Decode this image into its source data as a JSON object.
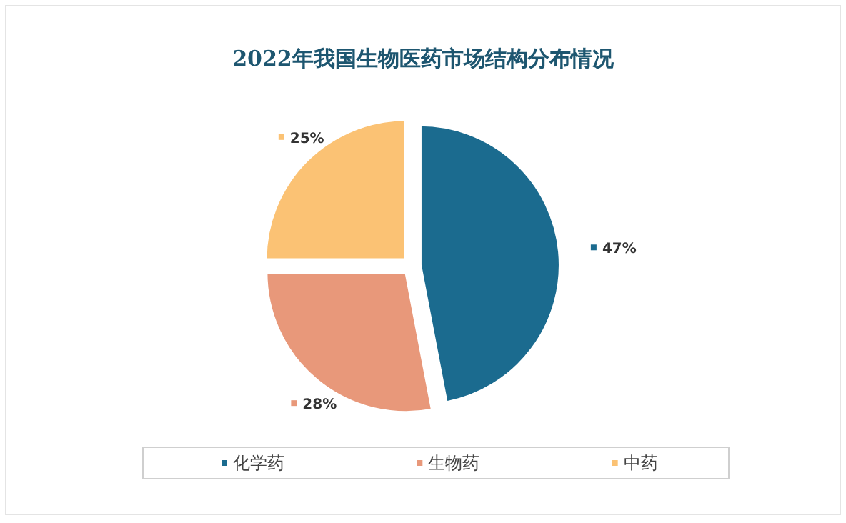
{
  "chart_data": {
    "type": "pie",
    "title": "2022年我国生物医药市场结构分布情况",
    "categories": [
      "化学药",
      "生物药",
      "中药"
    ],
    "values": [
      47,
      28,
      25
    ],
    "colors": [
      "#1b6b8f",
      "#e8987a",
      "#fbc274"
    ],
    "value_labels": [
      "47%",
      "28%",
      "25%"
    ],
    "legend": "bottom"
  }
}
